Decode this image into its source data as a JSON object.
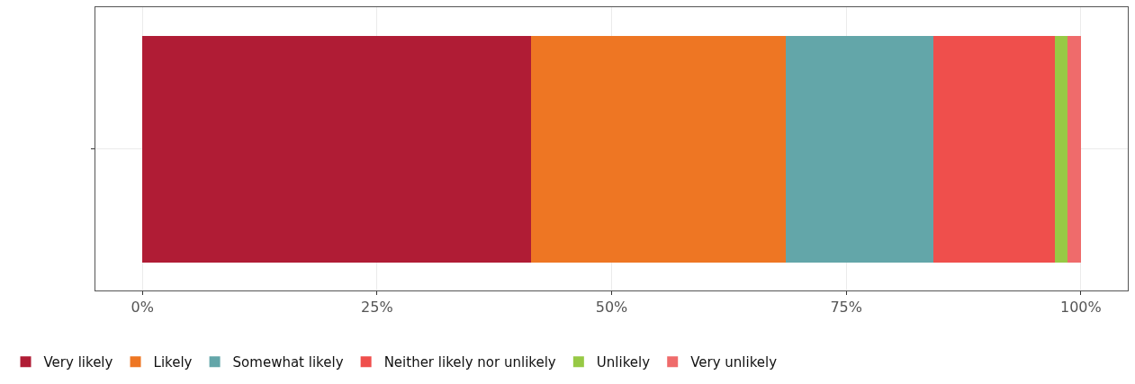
{
  "chart_data": {
    "type": "bar",
    "orientation": "horizontal",
    "stacked": true,
    "categories": [
      null
    ],
    "series": [
      {
        "name": "Very likely",
        "color": "#b01c35",
        "values": [
          41.4
        ]
      },
      {
        "name": "Likely",
        "color": "#ee7623",
        "values": [
          27.2
        ]
      },
      {
        "name": "Somewhat likely",
        "color": "#63a6a9",
        "values": [
          15.7
        ]
      },
      {
        "name": "Neither likely nor unlikely",
        "color": "#ef4f4c",
        "values": [
          12.9
        ]
      },
      {
        "name": "Unlikely",
        "color": "#97c945",
        "values": [
          1.4
        ]
      },
      {
        "name": "Very unlikely",
        "color": "#ef6b6b",
        "values": [
          1.4
        ]
      }
    ],
    "xlim": [
      -5,
      105
    ],
    "xticks": [
      {
        "value": 0,
        "label": "0%"
      },
      {
        "value": 25,
        "label": "25%"
      },
      {
        "value": 50,
        "label": "50%"
      },
      {
        "value": 75,
        "label": "75%"
      },
      {
        "value": 100,
        "label": "100%"
      }
    ],
    "grid": true,
    "legend": "bottom",
    "tick_labels": "x"
  }
}
